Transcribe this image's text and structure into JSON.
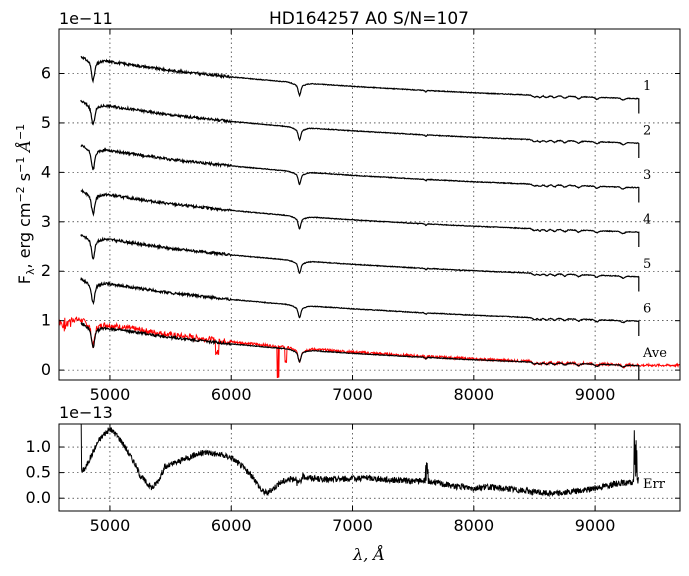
{
  "chart_data": [
    {
      "type": "line",
      "title": "HD164257  A0  S/N=107",
      "ylabel_main": "F",
      "ylabel_sub": "λ",
      "ylabel_rest": ", erg cm",
      "ylabel_sup1": "−2",
      "ylabel_s": " s",
      "ylabel_sup2": "−1",
      "ylabel_A": " Å",
      "ylabel_sup3": "−1",
      "offset_label": "1e−11",
      "xlim": [
        4580,
        9700
      ],
      "ylim": [
        -0.2,
        6.9
      ],
      "xticks": [
        5000,
        6000,
        7000,
        8000,
        9000
      ],
      "xtick_labels": [
        "5000",
        "6000",
        "7000",
        "8000",
        "9000"
      ],
      "yticks": [
        0,
        1,
        2,
        3,
        4,
        5,
        6
      ],
      "ytick_labels": [
        "0",
        "1",
        "2",
        "3",
        "4",
        "5",
        "6"
      ],
      "grid": true,
      "series": [
        {
          "name": "1",
          "color": "#000000",
          "offset": 5.4
        },
        {
          "name": "2",
          "color": "#000000",
          "offset": 4.5
        },
        {
          "name": "3",
          "color": "#000000",
          "offset": 3.6
        },
        {
          "name": "4",
          "color": "#000000",
          "offset": 2.7
        },
        {
          "name": "5",
          "color": "#000000",
          "offset": 1.8
        },
        {
          "name": "6",
          "color": "#000000",
          "offset": 0.9
        },
        {
          "name": "Ave",
          "color": "#000000",
          "offset": 0.0
        }
      ],
      "observed_color": "#ff0000",
      "continuum": {
        "x": [
          4760,
          5000,
          5500,
          6000,
          6500,
          7000,
          7500,
          8000,
          8500,
          9000,
          9360
        ],
        "y": [
          0.95,
          0.84,
          0.66,
          0.53,
          0.42,
          0.34,
          0.27,
          0.21,
          0.16,
          0.12,
          0.09
        ]
      },
      "observed_x": [
        4580,
        9700
      ]
    },
    {
      "type": "line",
      "offset_label": "1e−13",
      "xlabel_main": "λ",
      "xlabel_rest": ", Å",
      "label": "Err",
      "xlim": [
        4580,
        9700
      ],
      "ylim": [
        -0.25,
        1.45
      ],
      "xticks": [
        5000,
        6000,
        7000,
        8000,
        9000
      ],
      "xtick_labels": [
        "5000",
        "6000",
        "7000",
        "8000",
        "9000"
      ],
      "yticks": [
        0,
        0.5,
        1.0
      ],
      "ytick_labels": [
        "0.0",
        "0.5",
        "1.0"
      ],
      "grid": true,
      "series": [
        {
          "color": "#000000",
          "x": [
            4760,
            4800,
            4850,
            4900,
            4950,
            5000,
            5050,
            5100,
            5150,
            5200,
            5250,
            5300,
            5350,
            5400,
            5450,
            5500,
            5600,
            5700,
            5800,
            5900,
            6000,
            6100,
            6200,
            6250,
            6300,
            6350,
            6400,
            6450,
            6500,
            6550,
            6600,
            6650,
            6700,
            6800,
            6900,
            7000,
            7100,
            7200,
            7300,
            7400,
            7500,
            7600,
            7700,
            7800,
            7900,
            8000,
            8100,
            8200,
            8300,
            8400,
            8500,
            8600,
            8700,
            8800,
            8900,
            9000,
            9100,
            9200,
            9300,
            9360
          ],
          "y": [
            0.5,
            0.6,
            0.85,
            1.1,
            1.25,
            1.35,
            1.25,
            1.1,
            0.9,
            0.7,
            0.45,
            0.3,
            0.2,
            0.35,
            0.6,
            0.65,
            0.75,
            0.85,
            0.9,
            0.85,
            0.8,
            0.6,
            0.35,
            0.15,
            0.1,
            0.2,
            0.3,
            0.35,
            0.38,
            0.4,
            0.42,
            0.4,
            0.38,
            0.36,
            0.38,
            0.38,
            0.4,
            0.38,
            0.36,
            0.35,
            0.33,
            0.35,
            0.3,
            0.25,
            0.22,
            0.2,
            0.22,
            0.2,
            0.18,
            0.15,
            0.12,
            0.1,
            0.1,
            0.12,
            0.15,
            0.2,
            0.25,
            0.3,
            0.3,
            0.35
          ]
        }
      ]
    }
  ]
}
